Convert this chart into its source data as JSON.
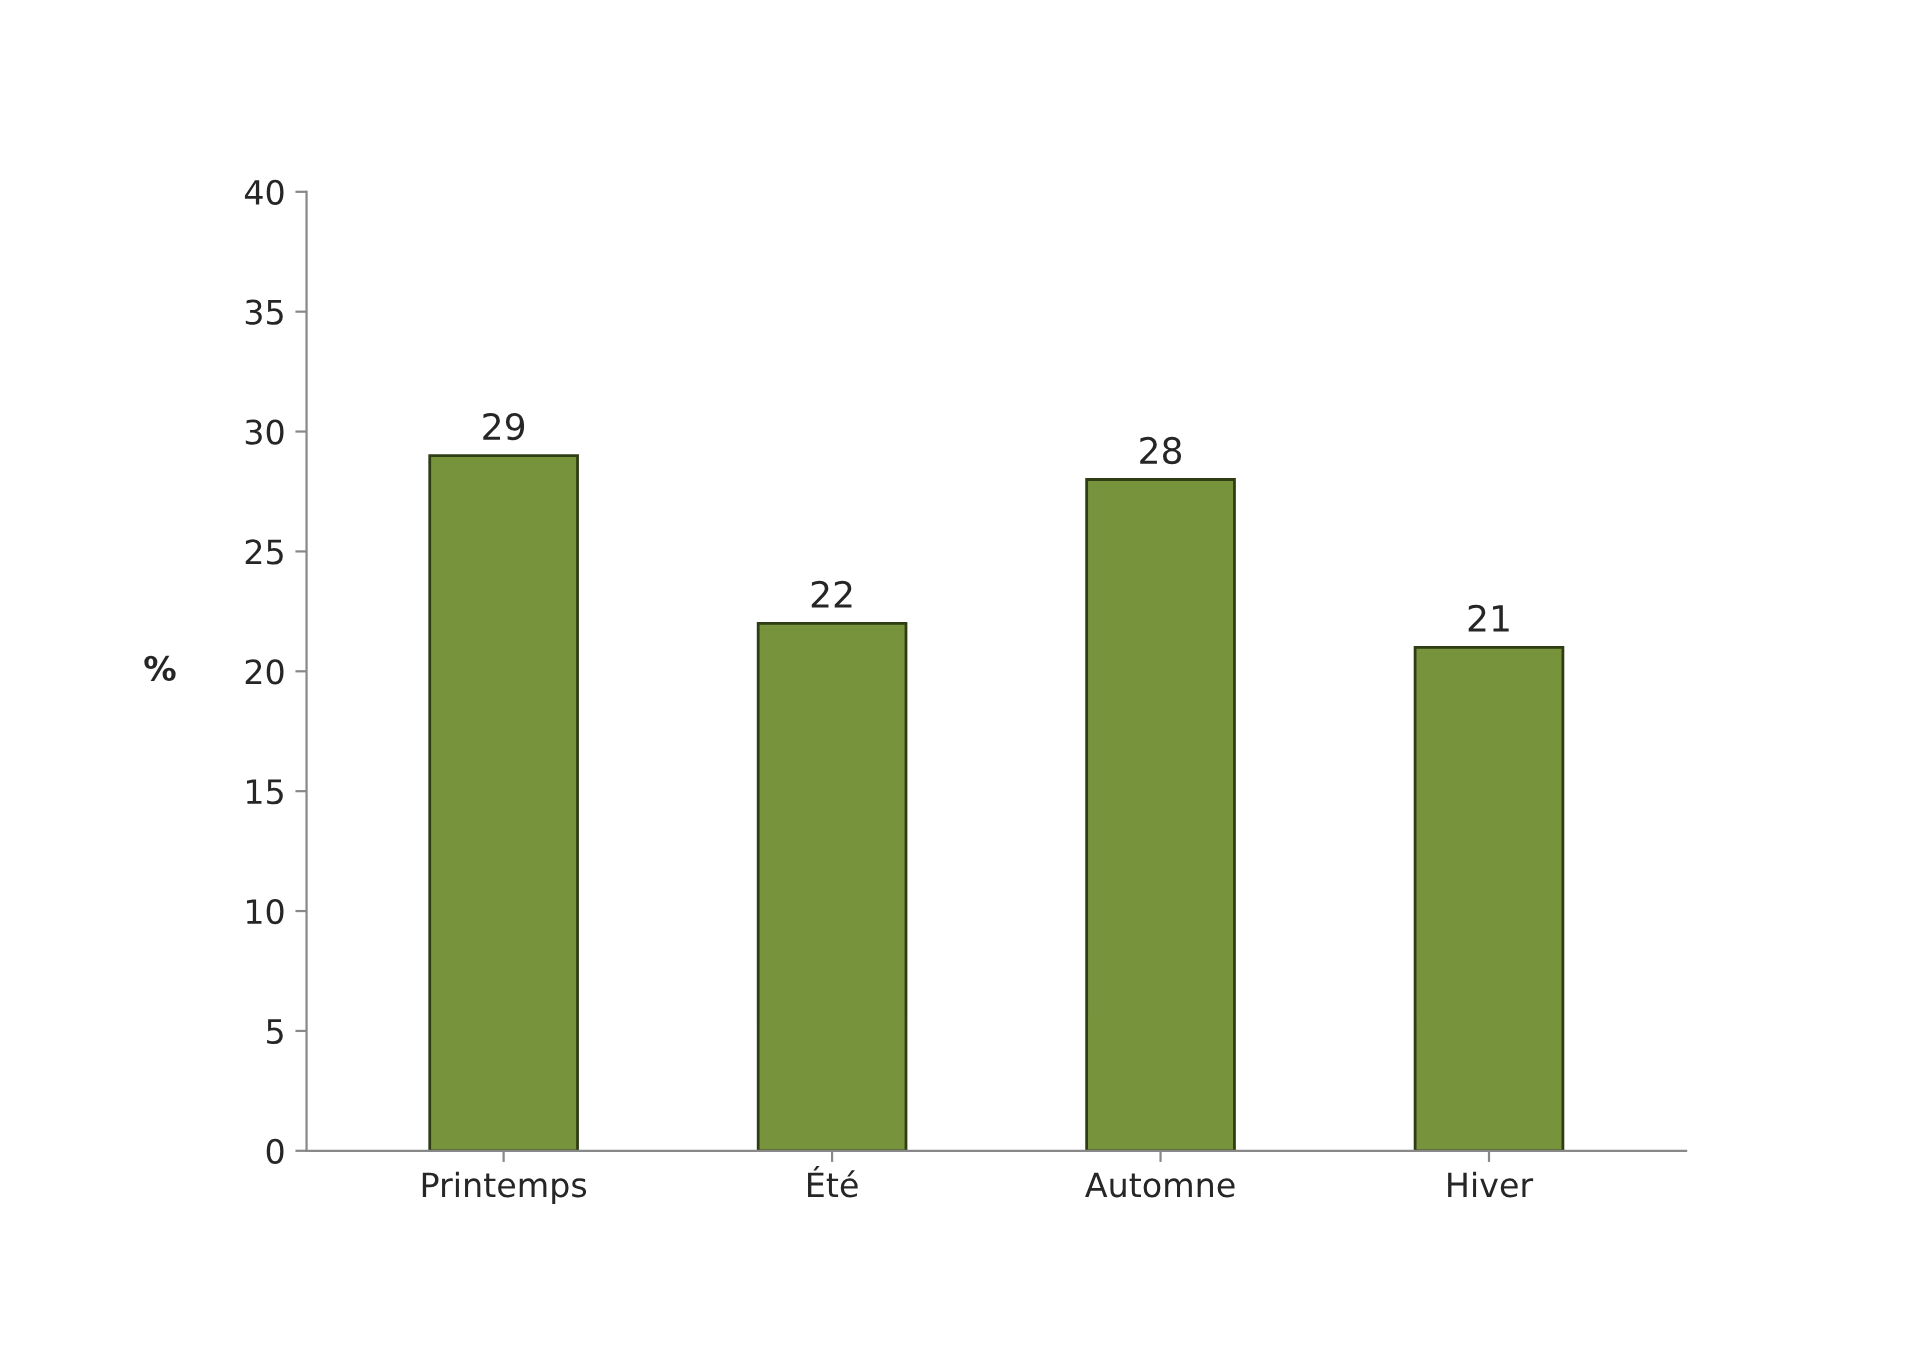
{
  "chart_data": {
    "type": "bar",
    "ylabel": "%",
    "categories": [
      "Printemps",
      "Été",
      "Automne",
      "Hiver"
    ],
    "values": [
      29,
      22,
      28,
      21
    ],
    "color": "#77933c",
    "ylim": [
      0,
      40
    ],
    "yticks": [
      0,
      5,
      10,
      15,
      20,
      25,
      30,
      35,
      40
    ],
    "data_labels": true,
    "grid": false,
    "legend": false
  }
}
